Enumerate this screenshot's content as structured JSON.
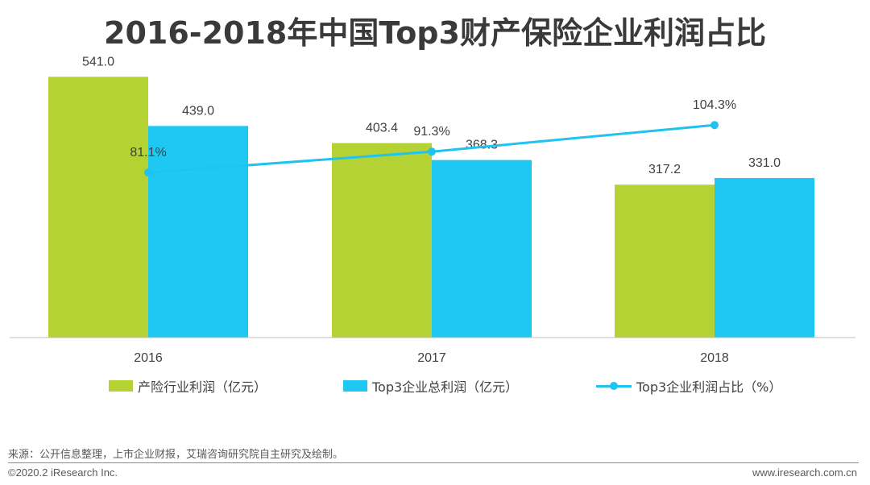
{
  "title": "2016-2018年中国Top3财产保险企业利润占比",
  "chart_data": {
    "type": "bar",
    "categories": [
      "2016",
      "2017",
      "2018"
    ],
    "series": [
      {
        "name": "产险行业利润（亿元）",
        "values": [
          541.0,
          403.4,
          317.2
        ],
        "labels": [
          "541.0",
          "403.4",
          "317.2"
        ],
        "color": "#b4d233",
        "kind": "bar"
      },
      {
        "name": "Top3企业总利润（亿元）",
        "values": [
          439.0,
          368.3,
          331.0
        ],
        "labels": [
          "439.0",
          "368.3",
          "331.0"
        ],
        "color": "#1ec8f2",
        "kind": "bar"
      },
      {
        "name": "Top3企业利润占比（%）",
        "values": [
          81.1,
          91.3,
          104.3
        ],
        "labels": [
          "81.1%",
          "91.3%",
          "104.3%"
        ],
        "color": "#1ec3f0",
        "kind": "line"
      }
    ],
    "ylim": [
      0,
      600
    ],
    "line_ylim": [
      0,
      130
    ],
    "legend_position": "bottom"
  },
  "legend": {
    "item1": "产险行业利润（亿元）",
    "item2": "Top3企业总利润（亿元）",
    "item3": "Top3企业利润占比（%）"
  },
  "footer": {
    "source": "来源：公开信息整理，上市企业财报，艾瑞咨询研究院自主研究及绘制。",
    "copyright": "©2020.2  iResearch Inc.",
    "website": "www.iresearch.com.cn"
  }
}
